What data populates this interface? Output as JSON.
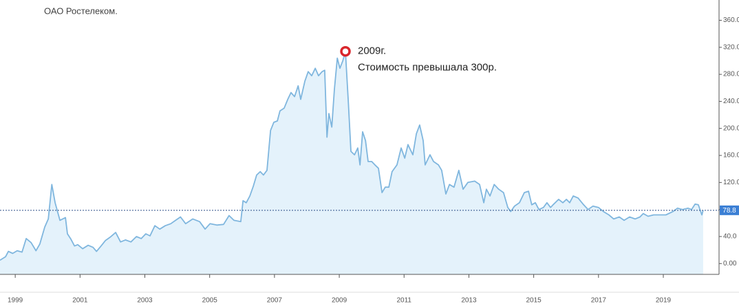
{
  "chart_data": {
    "type": "area",
    "title": "ОАО Ростелеком.",
    "x": [
      1998.53,
      1998.7,
      1998.79,
      1998.92,
      1999.06,
      1999.21,
      1999.34,
      1999.49,
      1999.64,
      1999.76,
      1999.91,
      2000.02,
      2000.13,
      2000.23,
      2000.38,
      2000.55,
      2000.61,
      2000.72,
      2000.83,
      2000.93,
      2001.08,
      2001.25,
      2001.4,
      2001.51,
      2001.65,
      2001.78,
      2001.93,
      2002.1,
      2002.25,
      2002.4,
      2002.57,
      2002.74,
      2002.89,
      2003.03,
      2003.16,
      2003.31,
      2003.46,
      2003.63,
      2003.8,
      2003.95,
      2004.1,
      2004.26,
      2004.48,
      2004.69,
      2004.86,
      2005.01,
      2005.22,
      2005.43,
      2005.6,
      2005.75,
      2005.96,
      2006.03,
      2006.13,
      2006.24,
      2006.35,
      2006.45,
      2006.56,
      2006.66,
      2006.77,
      2006.88,
      2006.98,
      2007.09,
      2007.17,
      2007.3,
      2007.41,
      2007.51,
      2007.62,
      2007.73,
      2007.81,
      2007.94,
      2008.04,
      2008.15,
      2008.26,
      2008.36,
      2008.47,
      2008.55,
      2008.62,
      2008.68,
      2008.77,
      2008.85,
      2008.94,
      2009.02,
      2009.11,
      2009.19,
      2009.28,
      2009.36,
      2009.47,
      2009.57,
      2009.64,
      2009.72,
      2009.81,
      2009.89,
      2010.0,
      2010.1,
      2010.21,
      2010.32,
      2010.42,
      2010.53,
      2010.63,
      2010.78,
      2010.91,
      2011.02,
      2011.12,
      2011.27,
      2011.38,
      2011.48,
      2011.59,
      2011.65,
      2011.8,
      2011.91,
      2012.06,
      2012.16,
      2012.29,
      2012.4,
      2012.54,
      2012.69,
      2012.82,
      2012.97,
      2013.18,
      2013.33,
      2013.46,
      2013.54,
      2013.65,
      2013.78,
      2013.92,
      2014.07,
      2014.2,
      2014.29,
      2014.41,
      2014.56,
      2014.71,
      2014.84,
      2014.94,
      2015.05,
      2015.16,
      2015.3,
      2015.41,
      2015.52,
      2015.62,
      2015.77,
      2015.9,
      2016.01,
      2016.11,
      2016.22,
      2016.37,
      2016.54,
      2016.68,
      2016.83,
      2017.0,
      2017.15,
      2017.32,
      2017.47,
      2017.64,
      2017.79,
      2017.96,
      2018.13,
      2018.28,
      2018.38,
      2018.53,
      2018.7,
      2018.87,
      2019.08,
      2019.3,
      2019.44,
      2019.59,
      2019.76,
      2019.87,
      2019.98,
      2020.08,
      2020.19,
      2020.23
    ],
    "series": [
      {
        "color": "#7fb6de",
        "values": [
          5,
          10,
          18,
          15,
          19,
          17,
          37,
          31,
          19,
          29,
          54,
          66,
          117,
          90,
          64,
          68,
          44,
          36,
          26,
          28,
          22,
          27,
          24,
          18,
          26,
          34,
          39,
          46,
          32,
          35,
          32,
          40,
          37,
          44,
          41,
          56,
          51,
          56,
          59,
          64,
          69,
          59,
          66,
          62,
          51,
          59,
          57,
          58,
          71,
          64,
          62,
          93,
          90,
          100,
          115,
          131,
          136,
          131,
          138,
          197,
          209,
          211,
          226,
          230,
          243,
          253,
          247,
          263,
          243,
          270,
          284,
          278,
          289,
          278,
          284,
          286,
          187,
          222,
          202,
          258,
          304,
          289,
          300,
          314,
          238,
          166,
          161,
          171,
          146,
          195,
          182,
          151,
          151,
          146,
          141,
          105,
          113,
          113,
          136,
          146,
          171,
          156,
          176,
          161,
          192,
          205,
          182,
          146,
          161,
          151,
          146,
          138,
          103,
          117,
          113,
          138,
          110,
          120,
          122,
          117,
          90,
          110,
          100,
          117,
          110,
          105,
          83,
          77,
          85,
          90,
          105,
          107,
          87,
          90,
          80,
          83,
          90,
          83,
          88,
          95,
          90,
          95,
          90,
          100,
          97,
          87,
          80,
          85,
          83,
          77,
          72,
          66,
          69,
          64,
          69,
          66,
          69,
          74,
          70,
          72,
          72,
          72,
          77,
          82,
          80,
          82,
          80,
          88,
          87,
          72,
          78.8
        ]
      }
    ],
    "xlim": [
      1998.53,
      2020.72
    ],
    "ylim": [
      -16,
      390
    ],
    "xticks": [
      1999,
      2001,
      2003,
      2005,
      2007,
      2009,
      2011,
      2013,
      2015,
      2017,
      2019
    ],
    "yticks": [
      {
        "value": 360,
        "label": "360.0"
      },
      {
        "value": 320,
        "label": "320.0"
      },
      {
        "value": 280,
        "label": "280.0"
      },
      {
        "value": 240,
        "label": "240.0"
      },
      {
        "value": 200,
        "label": "200.0"
      },
      {
        "value": 160,
        "label": "160.0"
      },
      {
        "value": 120,
        "label": "120.0"
      },
      {
        "value": 80,
        "label": "80.0"
      },
      {
        "value": 40,
        "label": "40.0"
      },
      {
        "value": 0,
        "label": "0.00"
      }
    ],
    "current_value": 78.8,
    "annotation": {
      "lines": [
        "2009г.",
        "Стоимость превышала 300р."
      ],
      "x": 2009.19,
      "y": 314
    }
  }
}
